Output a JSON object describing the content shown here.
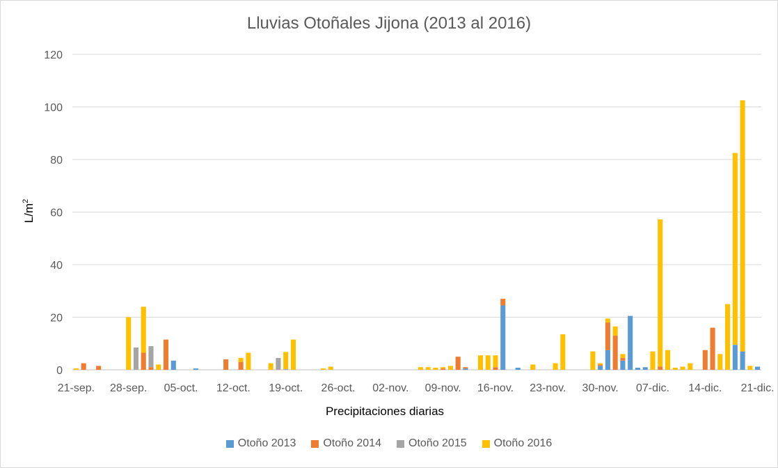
{
  "chart_data": {
    "type": "bar",
    "stacked": true,
    "title": "Lluvias Otoñales Jijona (2013 al 2016)",
    "xlabel": "Precipitaciones diarias",
    "ylabel": "L/m",
    "ylabel_superscript": "2",
    "ylim": [
      0,
      120
    ],
    "yticks": [
      0,
      20,
      40,
      60,
      80,
      100,
      120
    ],
    "grid": true,
    "legend_position": "bottom",
    "x_start": "21-sep.",
    "x_days": 92,
    "x_tick_labels": [
      {
        "day": 0,
        "label": "21-sep."
      },
      {
        "day": 7,
        "label": "28-sep."
      },
      {
        "day": 14,
        "label": "05-oct."
      },
      {
        "day": 21,
        "label": "12-oct."
      },
      {
        "day": 28,
        "label": "19-oct."
      },
      {
        "day": 35,
        "label": "26-oct."
      },
      {
        "day": 42,
        "label": "02-nov."
      },
      {
        "day": 49,
        "label": "09-nov."
      },
      {
        "day": 56,
        "label": "16-nov."
      },
      {
        "day": 63,
        "label": "23-nov."
      },
      {
        "day": 70,
        "label": "30-nov."
      },
      {
        "day": 77,
        "label": "07-dic."
      },
      {
        "day": 84,
        "label": "14-dic."
      },
      {
        "day": 91,
        "label": "21-dic."
      }
    ],
    "series": [
      {
        "name": "Otoño 2013",
        "color": "#5b9bd5",
        "points": [
          [
            13,
            3.5
          ],
          [
            16,
            0.5
          ],
          [
            52,
            0.5
          ],
          [
            57,
            24.5
          ],
          [
            59,
            0.8
          ],
          [
            70,
            1.5
          ],
          [
            71,
            7.5
          ],
          [
            73,
            3.5
          ],
          [
            74,
            20.5
          ],
          [
            75,
            0.8
          ],
          [
            76,
            1
          ],
          [
            88,
            9.5
          ],
          [
            89,
            7
          ],
          [
            91,
            1.2
          ]
        ]
      },
      {
        "name": "Otoño 2014",
        "color": "#ed7d31",
        "points": [
          [
            1,
            2.5
          ],
          [
            3,
            1.5
          ],
          [
            9,
            6.5
          ],
          [
            10,
            1
          ],
          [
            12,
            11.5
          ],
          [
            20,
            4
          ],
          [
            22,
            3
          ],
          [
            49,
            0.5
          ],
          [
            51,
            5
          ],
          [
            52,
            0.5
          ],
          [
            56,
            1
          ],
          [
            57,
            2.5
          ],
          [
            70,
            0.5
          ],
          [
            71,
            10.5
          ],
          [
            72,
            13
          ],
          [
            73,
            1
          ],
          [
            78,
            1.2
          ],
          [
            84,
            7.5
          ],
          [
            85,
            16
          ]
        ]
      },
      {
        "name": "Otoño 2015",
        "color": "#a5a5a5",
        "points": [
          [
            8,
            8.5
          ],
          [
            10,
            8
          ],
          [
            27,
            4.5
          ],
          [
            28,
            0.3
          ]
        ]
      },
      {
        "name": "Otoño 2016",
        "color": "#ffc000",
        "points": [
          [
            0,
            0.5
          ],
          [
            7,
            20
          ],
          [
            9,
            17.5
          ],
          [
            11,
            2
          ],
          [
            22,
            1.5
          ],
          [
            23,
            6.5
          ],
          [
            26,
            2.5
          ],
          [
            28,
            6.5
          ],
          [
            29,
            11.5
          ],
          [
            33,
            0.5
          ],
          [
            34,
            1.2
          ],
          [
            46,
            1
          ],
          [
            47,
            1
          ],
          [
            48,
            0.8
          ],
          [
            49,
            0.5
          ],
          [
            50,
            1.5
          ],
          [
            54,
            5.5
          ],
          [
            55,
            5.5
          ],
          [
            56,
            4.5
          ],
          [
            61,
            2
          ],
          [
            64,
            2.5
          ],
          [
            65,
            13.5
          ],
          [
            69,
            7
          ],
          [
            70,
            0.5
          ],
          [
            71,
            1.5
          ],
          [
            72,
            3.5
          ],
          [
            73,
            1.5
          ],
          [
            77,
            7
          ],
          [
            78,
            56
          ],
          [
            79,
            7.5
          ],
          [
            80,
            0.8
          ],
          [
            81,
            1.2
          ],
          [
            82,
            2.5
          ],
          [
            86,
            6
          ],
          [
            87,
            25
          ],
          [
            88,
            73
          ],
          [
            89,
            95.5
          ],
          [
            90,
            1.5
          ]
        ]
      }
    ]
  }
}
